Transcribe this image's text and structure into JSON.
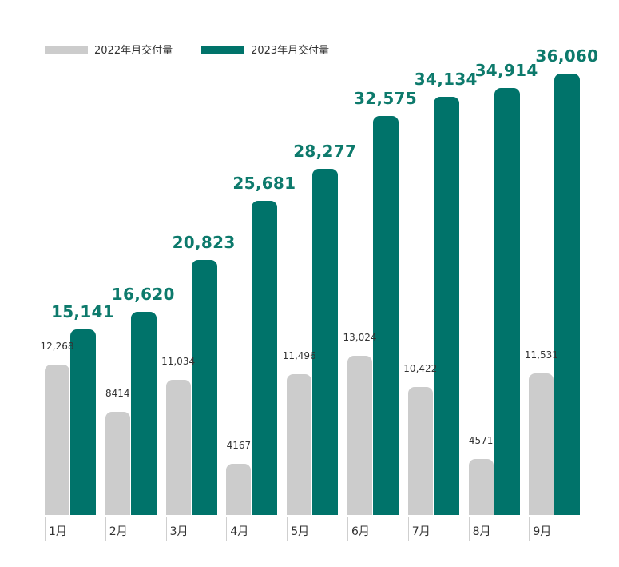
{
  "chart_data": {
    "type": "bar",
    "title": "",
    "xlabel": "",
    "ylabel": "",
    "categories": [
      "1月",
      "2月",
      "3月",
      "4月",
      "5月",
      "6月",
      "7月",
      "8月",
      "9月"
    ],
    "series": [
      {
        "name": "2022年月交付量",
        "color": "#cccccc",
        "values": [
          12268,
          8414,
          11034,
          4167,
          11496,
          13024,
          10422,
          4571,
          11531
        ],
        "labels": [
          "12,268",
          "8414",
          "11,034",
          "4167",
          "11,496",
          "13,024",
          "10,422",
          "4571",
          "11,531"
        ]
      },
      {
        "name": "2023年月交付量",
        "color": "#00736a",
        "values": [
          15141,
          16620,
          20823,
          25681,
          28277,
          32575,
          34134,
          34914,
          36060
        ],
        "labels": [
          "15,141",
          "16,620",
          "20,823",
          "25,681",
          "28,277",
          "32,575",
          "34,134",
          "34,914",
          "36,060"
        ]
      }
    ],
    "ylim": [
      0,
      36060
    ],
    "grid": false,
    "legend_position": "top-left",
    "y_axis_visible": false
  },
  "legend": {
    "items": [
      {
        "label": "2022年月交付量",
        "color": "#cccccc"
      },
      {
        "label": "2023年月交付量",
        "color": "#00736a"
      }
    ]
  },
  "colors": {
    "bar_2022": "#cccccc",
    "bar_2023": "#00736a",
    "label_2023": "#0d7a6c",
    "text": "#333333"
  }
}
